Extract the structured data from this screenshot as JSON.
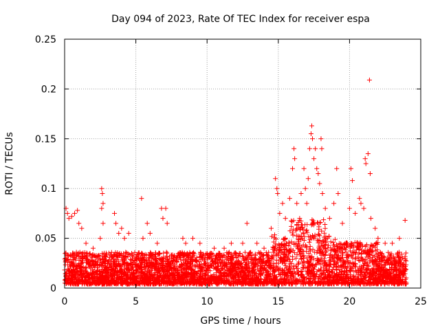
{
  "chart_data": {
    "type": "scatter",
    "title": "Day 094 of 2023, Rate Of TEC Index for receiver espa",
    "xlabel": "GPS time / hours",
    "ylabel": "ROTI / TECUs",
    "xlim": [
      0,
      25
    ],
    "ylim": [
      0,
      0.25
    ],
    "grid": true,
    "marker": "+",
    "color": "#ff0000",
    "x_ticks": [
      0,
      5,
      10,
      15,
      20,
      25
    ],
    "x_tick_labels": [
      "0",
      "5",
      "10",
      "15",
      "20",
      "25"
    ],
    "y_ticks": [
      0,
      0.05,
      0.1,
      0.15,
      0.2,
      0.25
    ],
    "y_tick_labels": [
      "0",
      "0.05",
      "0.1",
      "0.15",
      "0.2",
      "0.25"
    ],
    "series": [
      {
        "name": "ROTI",
        "points": [
          [
            0.1,
            0.08
          ],
          [
            0.2,
            0.075
          ],
          [
            0.3,
            0.07
          ],
          [
            0.5,
            0.072
          ],
          [
            0.7,
            0.075
          ],
          [
            0.9,
            0.078
          ],
          [
            1.0,
            0.065
          ],
          [
            1.2,
            0.06
          ],
          [
            1.5,
            0.045
          ],
          [
            2.0,
            0.04
          ],
          [
            2.5,
            0.05
          ],
          [
            2.6,
            0.1
          ],
          [
            2.65,
            0.095
          ],
          [
            2.7,
            0.085
          ],
          [
            2.6,
            0.08
          ],
          [
            2.7,
            0.065
          ],
          [
            3.5,
            0.075
          ],
          [
            3.6,
            0.065
          ],
          [
            3.8,
            0.055
          ],
          [
            4.0,
            0.06
          ],
          [
            4.2,
            0.05
          ],
          [
            4.5,
            0.055
          ],
          [
            5.4,
            0.09
          ],
          [
            5.5,
            0.05
          ],
          [
            5.8,
            0.065
          ],
          [
            6.0,
            0.055
          ],
          [
            6.5,
            0.045
          ],
          [
            6.8,
            0.08
          ],
          [
            6.9,
            0.07
          ],
          [
            7.1,
            0.08
          ],
          [
            7.2,
            0.065
          ],
          [
            8.3,
            0.05
          ],
          [
            8.5,
            0.045
          ],
          [
            9.0,
            0.05
          ],
          [
            9.5,
            0.045
          ],
          [
            10.5,
            0.04
          ],
          [
            11.2,
            0.04
          ],
          [
            11.7,
            0.045
          ],
          [
            12.0,
            0.035
          ],
          [
            12.5,
            0.045
          ],
          [
            12.8,
            0.065
          ],
          [
            13.5,
            0.045
          ],
          [
            14.0,
            0.04
          ],
          [
            14.5,
            0.06
          ],
          [
            14.8,
            0.11
          ],
          [
            14.9,
            0.1
          ],
          [
            14.95,
            0.095
          ],
          [
            15.1,
            0.075
          ],
          [
            15.3,
            0.085
          ],
          [
            15.5,
            0.07
          ],
          [
            15.8,
            0.09
          ],
          [
            16.0,
            0.12
          ],
          [
            16.1,
            0.14
          ],
          [
            16.15,
            0.13
          ],
          [
            16.3,
            0.085
          ],
          [
            16.5,
            0.07
          ],
          [
            16.6,
            0.095
          ],
          [
            16.8,
            0.12
          ],
          [
            16.9,
            0.1
          ],
          [
            17.0,
            0.085
          ],
          [
            17.1,
            0.11
          ],
          [
            17.2,
            0.14
          ],
          [
            17.3,
            0.155
          ],
          [
            17.35,
            0.163
          ],
          [
            17.4,
            0.15
          ],
          [
            17.5,
            0.13
          ],
          [
            17.6,
            0.14
          ],
          [
            17.7,
            0.12
          ],
          [
            17.8,
            0.115
          ],
          [
            17.9,
            0.105
          ],
          [
            18.0,
            0.15
          ],
          [
            18.05,
            0.14
          ],
          [
            18.1,
            0.095
          ],
          [
            18.3,
            0.08
          ],
          [
            18.6,
            0.07
          ],
          [
            18.9,
            0.085
          ],
          [
            19.1,
            0.12
          ],
          [
            19.2,
            0.095
          ],
          [
            19.5,
            0.065
          ],
          [
            20.0,
            0.08
          ],
          [
            20.1,
            0.12
          ],
          [
            20.2,
            0.108
          ],
          [
            20.4,
            0.075
          ],
          [
            20.7,
            0.09
          ],
          [
            20.8,
            0.085
          ],
          [
            21.0,
            0.08
          ],
          [
            21.1,
            0.13
          ],
          [
            21.15,
            0.125
          ],
          [
            21.3,
            0.135
          ],
          [
            21.4,
            0.209
          ],
          [
            21.45,
            0.115
          ],
          [
            21.5,
            0.07
          ],
          [
            21.8,
            0.06
          ],
          [
            22.0,
            0.05
          ],
          [
            22.5,
            0.045
          ],
          [
            23.0,
            0.045
          ],
          [
            23.5,
            0.05
          ],
          [
            23.9,
            0.068
          ]
        ]
      }
    ]
  }
}
